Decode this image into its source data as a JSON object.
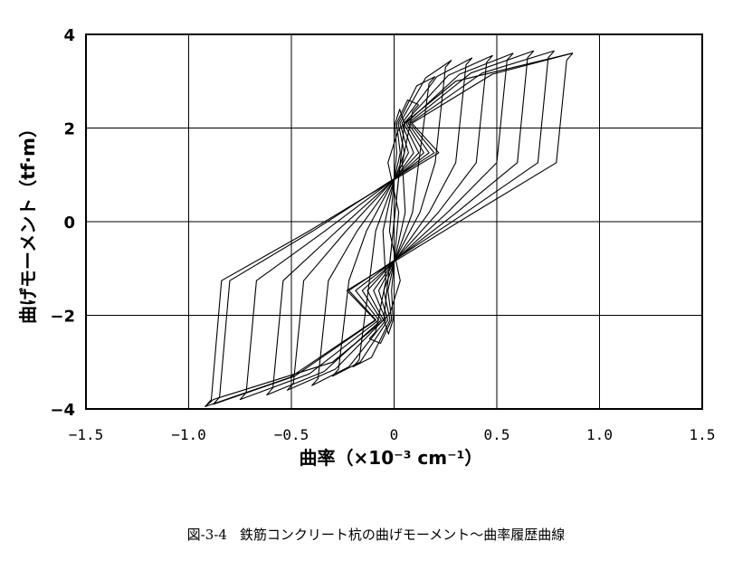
{
  "caption": {
    "figure_number": "図-3-4",
    "text": "鉄筋コンクリート杭の曲げモーメント～曲率履歴曲線"
  },
  "colors": {
    "line": "#000000",
    "grid": "#000000",
    "background_text": "#c8c8c8"
  },
  "chart_data": {
    "type": "line",
    "xlabel": "曲率（×10⁻³ cm⁻¹）",
    "ylabel": "曲げモーメント（tf·m）",
    "xlim": [
      -1.5,
      1.5
    ],
    "ylim": [
      -4,
      4
    ],
    "x_ticks": [
      -1.5,
      -1.0,
      -0.5,
      0,
      0.5,
      1.0,
      1.5
    ],
    "x_tick_labels": [
      "−1.5",
      "−1.0",
      "−0.5",
      "0",
      "0.5",
      "1.0",
      "1.5"
    ],
    "y_ticks": [
      -4,
      -2,
      0,
      2,
      4
    ],
    "y_tick_labels": [
      "−4",
      "−2",
      "0",
      "2",
      "4"
    ],
    "grid": true,
    "loop_peaks": [
      {
        "pos": [
          0.05,
          2.1
        ],
        "neg": [
          -0.05,
          -2.1
        ]
      },
      {
        "pos": [
          0.12,
          2.5
        ],
        "neg": [
          -0.12,
          -2.5
        ]
      },
      {
        "pos": [
          0.2,
          3.1
        ],
        "neg": [
          -0.2,
          -3.1
        ]
      },
      {
        "pos": [
          0.28,
          3.45
        ],
        "neg": [
          -0.3,
          -3.3
        ]
      },
      {
        "pos": [
          0.38,
          3.5
        ],
        "neg": [
          -0.4,
          -3.5
        ]
      },
      {
        "pos": [
          0.48,
          3.55
        ],
        "neg": [
          -0.52,
          -3.6
        ]
      },
      {
        "pos": [
          0.58,
          3.6
        ],
        "neg": [
          -0.62,
          -3.7
        ]
      },
      {
        "pos": [
          0.68,
          3.65
        ],
        "neg": [
          -0.75,
          -3.8
        ]
      },
      {
        "pos": [
          0.78,
          3.65
        ],
        "neg": [
          -0.88,
          -3.9
        ]
      },
      {
        "pos": [
          0.87,
          3.6
        ],
        "neg": [
          -0.92,
          -3.95
        ]
      }
    ],
    "skeleton": [
      [
        -0.92,
        -3.95
      ],
      [
        -0.88,
        -3.8
      ],
      [
        -0.3,
        -3.0
      ],
      [
        -0.05,
        -2.1
      ],
      [
        0,
        0
      ],
      [
        0.05,
        2.1
      ],
      [
        0.3,
        3.0
      ],
      [
        0.87,
        3.6
      ]
    ]
  }
}
